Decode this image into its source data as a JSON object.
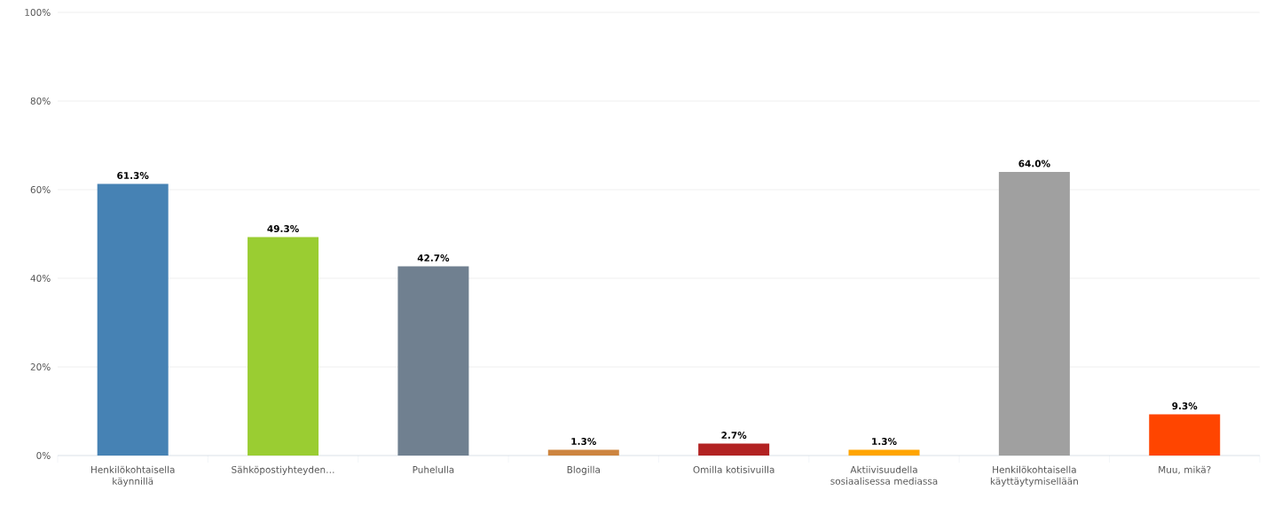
{
  "chart_data": {
    "type": "bar",
    "categories": [
      "Henkilökohtaisella käynnillä",
      "Sähköpostiyhteyden…",
      "Puhelulla",
      "Blogilla",
      "Omilla kotisivuilla",
      "Aktiivisuudella sosiaalisessa mediassa",
      "Henkilökohtaisella käyttäytymisellään",
      "Muu, mikä?"
    ],
    "values": [
      61.3,
      49.3,
      42.7,
      1.3,
      2.7,
      1.3,
      64.0,
      9.3
    ],
    "value_labels": [
      "61.3%",
      "49.3%",
      "42.7%",
      "1.3%",
      "2.7%",
      "1.3%",
      "64.0%",
      "9.3%"
    ],
    "colors": [
      "#4682b4",
      "#9acd32",
      "#708090",
      "#cd853f",
      "#b22222",
      "#ffa500",
      "#a0a0a0",
      "#ff4500"
    ],
    "ylim": [
      0,
      100
    ],
    "yticks": [
      {
        "value": 0,
        "label": "0%"
      },
      {
        "value": 20,
        "label": "20%"
      },
      {
        "value": 40,
        "label": "40%"
      },
      {
        "value": 60,
        "label": "60%"
      },
      {
        "value": 80,
        "label": "80%"
      },
      {
        "value": 100,
        "label": "100%"
      }
    ],
    "grid": "y"
  }
}
